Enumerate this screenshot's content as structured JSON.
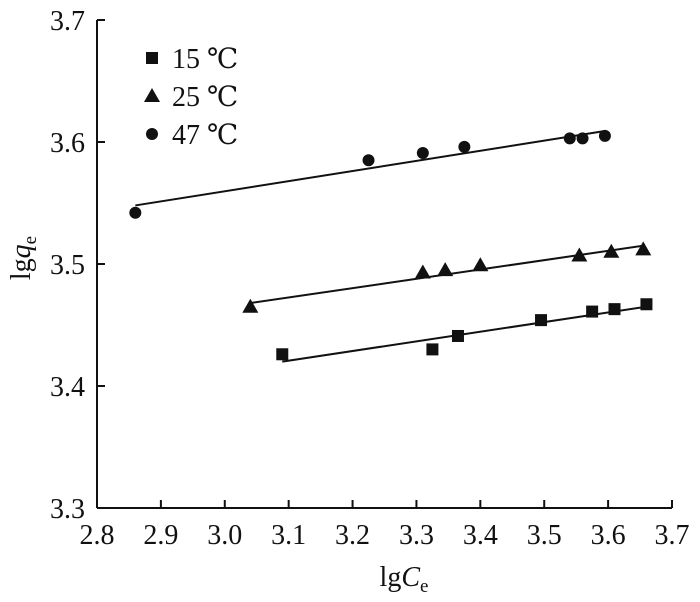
{
  "chart_data": {
    "type": "scatter",
    "xlabel_base": "lg",
    "xlabel_var": "C",
    "xlabel_sub": "e",
    "ylabel_base": "lg",
    "ylabel_var": "q",
    "ylabel_sub": "e",
    "xlim": [
      2.8,
      3.7
    ],
    "ylim": [
      3.3,
      3.7
    ],
    "xticks": [
      "2.8",
      "2.9",
      "3.0",
      "3.1",
      "3.2",
      "3.3",
      "3.4",
      "3.5",
      "3.6",
      "3.7"
    ],
    "yticks": [
      "3.3",
      "3.4",
      "3.5",
      "3.6",
      "3.7"
    ],
    "legend_position": "top-left",
    "grid": false,
    "series": [
      {
        "name": "15 ℃",
        "marker": "square",
        "x": [
          3.09,
          3.325,
          3.365,
          3.495,
          3.575,
          3.61,
          3.66
        ],
        "y": [
          3.426,
          3.43,
          3.441,
          3.454,
          3.461,
          3.463,
          3.467
        ],
        "fit": {
          "x": [
            3.09,
            3.66
          ],
          "y": [
            3.42,
            3.465
          ]
        }
      },
      {
        "name": "25 ℃",
        "marker": "triangle",
        "x": [
          3.04,
          3.31,
          3.345,
          3.4,
          3.555,
          3.605,
          3.655
        ],
        "y": [
          3.465,
          3.493,
          3.495,
          3.499,
          3.507,
          3.51,
          3.512
        ],
        "fit": {
          "x": [
            3.04,
            3.655
          ],
          "y": [
            3.468,
            3.515
          ]
        }
      },
      {
        "name": "47 ℃",
        "marker": "circle",
        "x": [
          2.86,
          3.225,
          3.31,
          3.375,
          3.54,
          3.56,
          3.595
        ],
        "y": [
          3.542,
          3.585,
          3.591,
          3.596,
          3.603,
          3.603,
          3.605
        ],
        "fit": {
          "x": [
            2.86,
            3.595
          ],
          "y": [
            3.548,
            3.609
          ]
        }
      }
    ]
  }
}
